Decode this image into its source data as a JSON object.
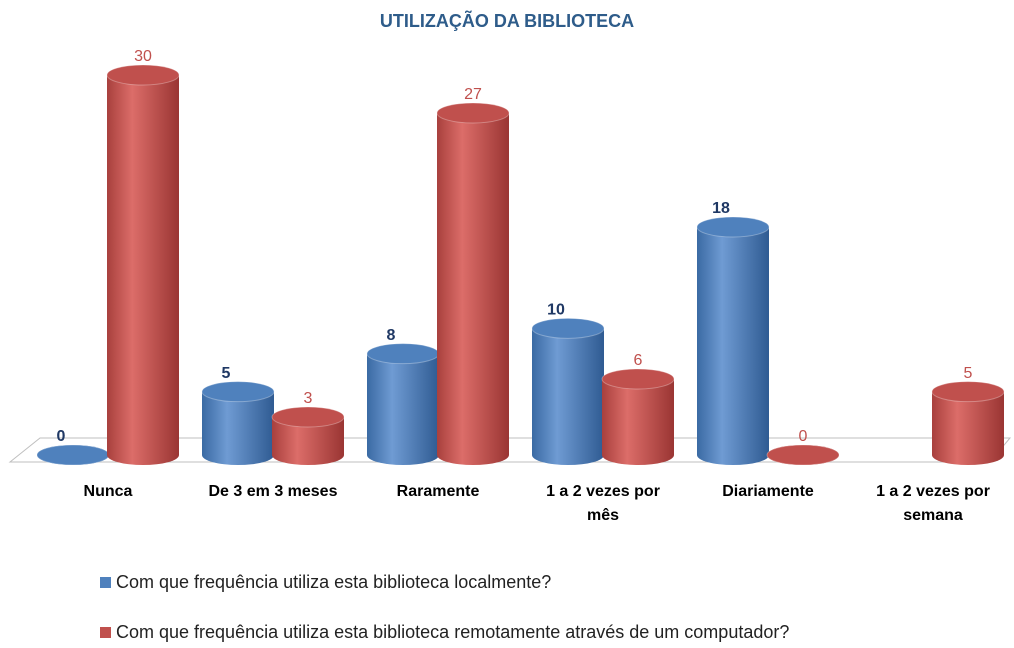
{
  "chart_data": {
    "type": "bar3d",
    "title": "UTILIZAÇÃO DA BIBLIOTECA",
    "categories": [
      "Nunca",
      "De 3 em 3 meses",
      "Raramente",
      "1 a 2 vezes por mês",
      "Diariamente",
      "1  a 2 vezes por semana"
    ],
    "series": [
      {
        "name": "Com que frequência utiliza esta biblioteca localmente?",
        "color": "#4f81bd",
        "values": [
          0,
          5,
          8,
          10,
          18,
          null
        ]
      },
      {
        "name": "Com que frequência utiliza esta biblioteca remotamente através de um computador?",
        "color": "#c0504d",
        "values": [
          30,
          3,
          27,
          6,
          0,
          5
        ]
      }
    ]
  }
}
